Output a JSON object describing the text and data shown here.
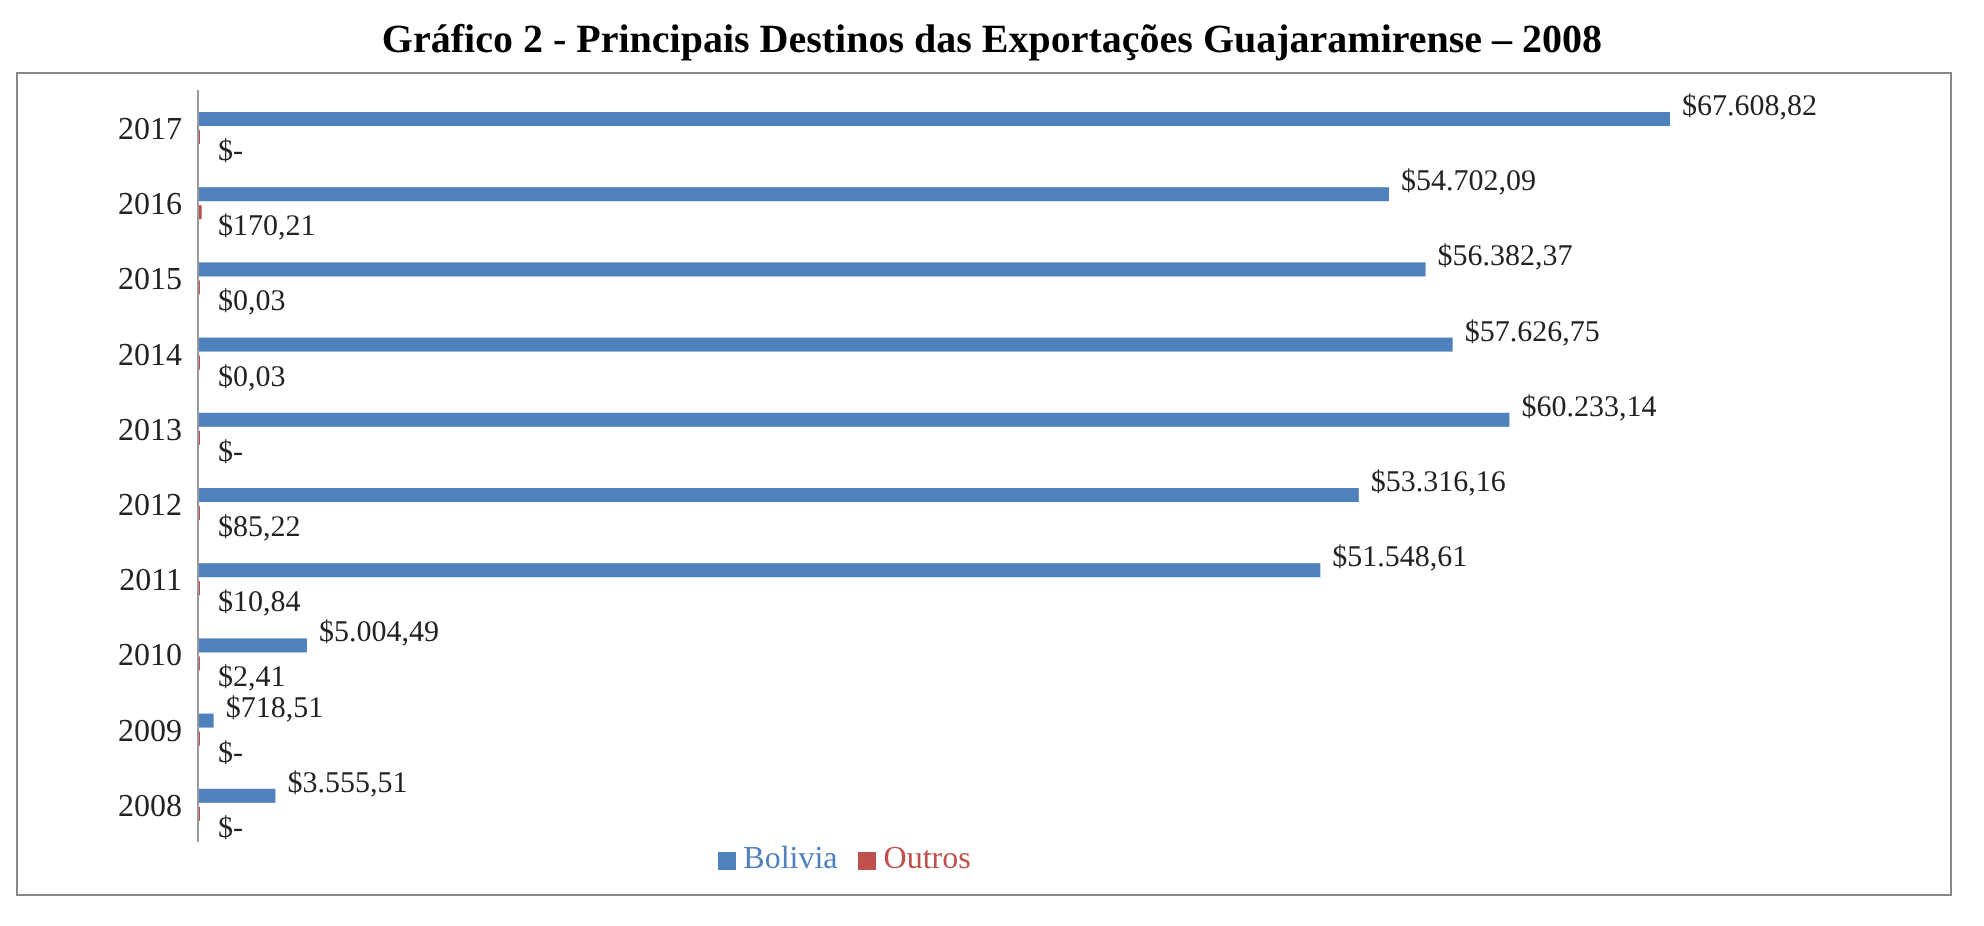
{
  "chart_data": {
    "type": "bar",
    "orientation": "horizontal",
    "title": "Gráfico 2 - Principais Destinos das Exportações Guajaramirense – 2008",
    "categories": [
      "2017",
      "2016",
      "2015",
      "2014",
      "2013",
      "2012",
      "2011",
      "2010",
      "2009",
      "2008"
    ],
    "series": [
      {
        "name": "Bolivia",
        "color": "#4f81bd",
        "values": [
          67608.82,
          54702.09,
          56382.37,
          57626.75,
          60233.14,
          53316.16,
          51548.61,
          5004.49,
          718.51,
          3555.51
        ],
        "value_labels": [
          "$67.608,82",
          "$54.702,09",
          "$56.382,37",
          "$57.626,75",
          "$60.233,14",
          "$53.316,16",
          "$51.548,61",
          "$5.004,49",
          "$718,51",
          "$3.555,51"
        ]
      },
      {
        "name": "Outros",
        "color": "#c0504d",
        "values": [
          0,
          170.21,
          0.03,
          0.03,
          0,
          85.22,
          10.84,
          2.41,
          0,
          0
        ],
        "value_labels": [
          "$-",
          "$170,21",
          "$0,03",
          "$0,03",
          "$-",
          "$85,22",
          "$10,84",
          "$2,41",
          "$-",
          "$-"
        ]
      }
    ],
    "legend": "bottom",
    "grid": false
  }
}
